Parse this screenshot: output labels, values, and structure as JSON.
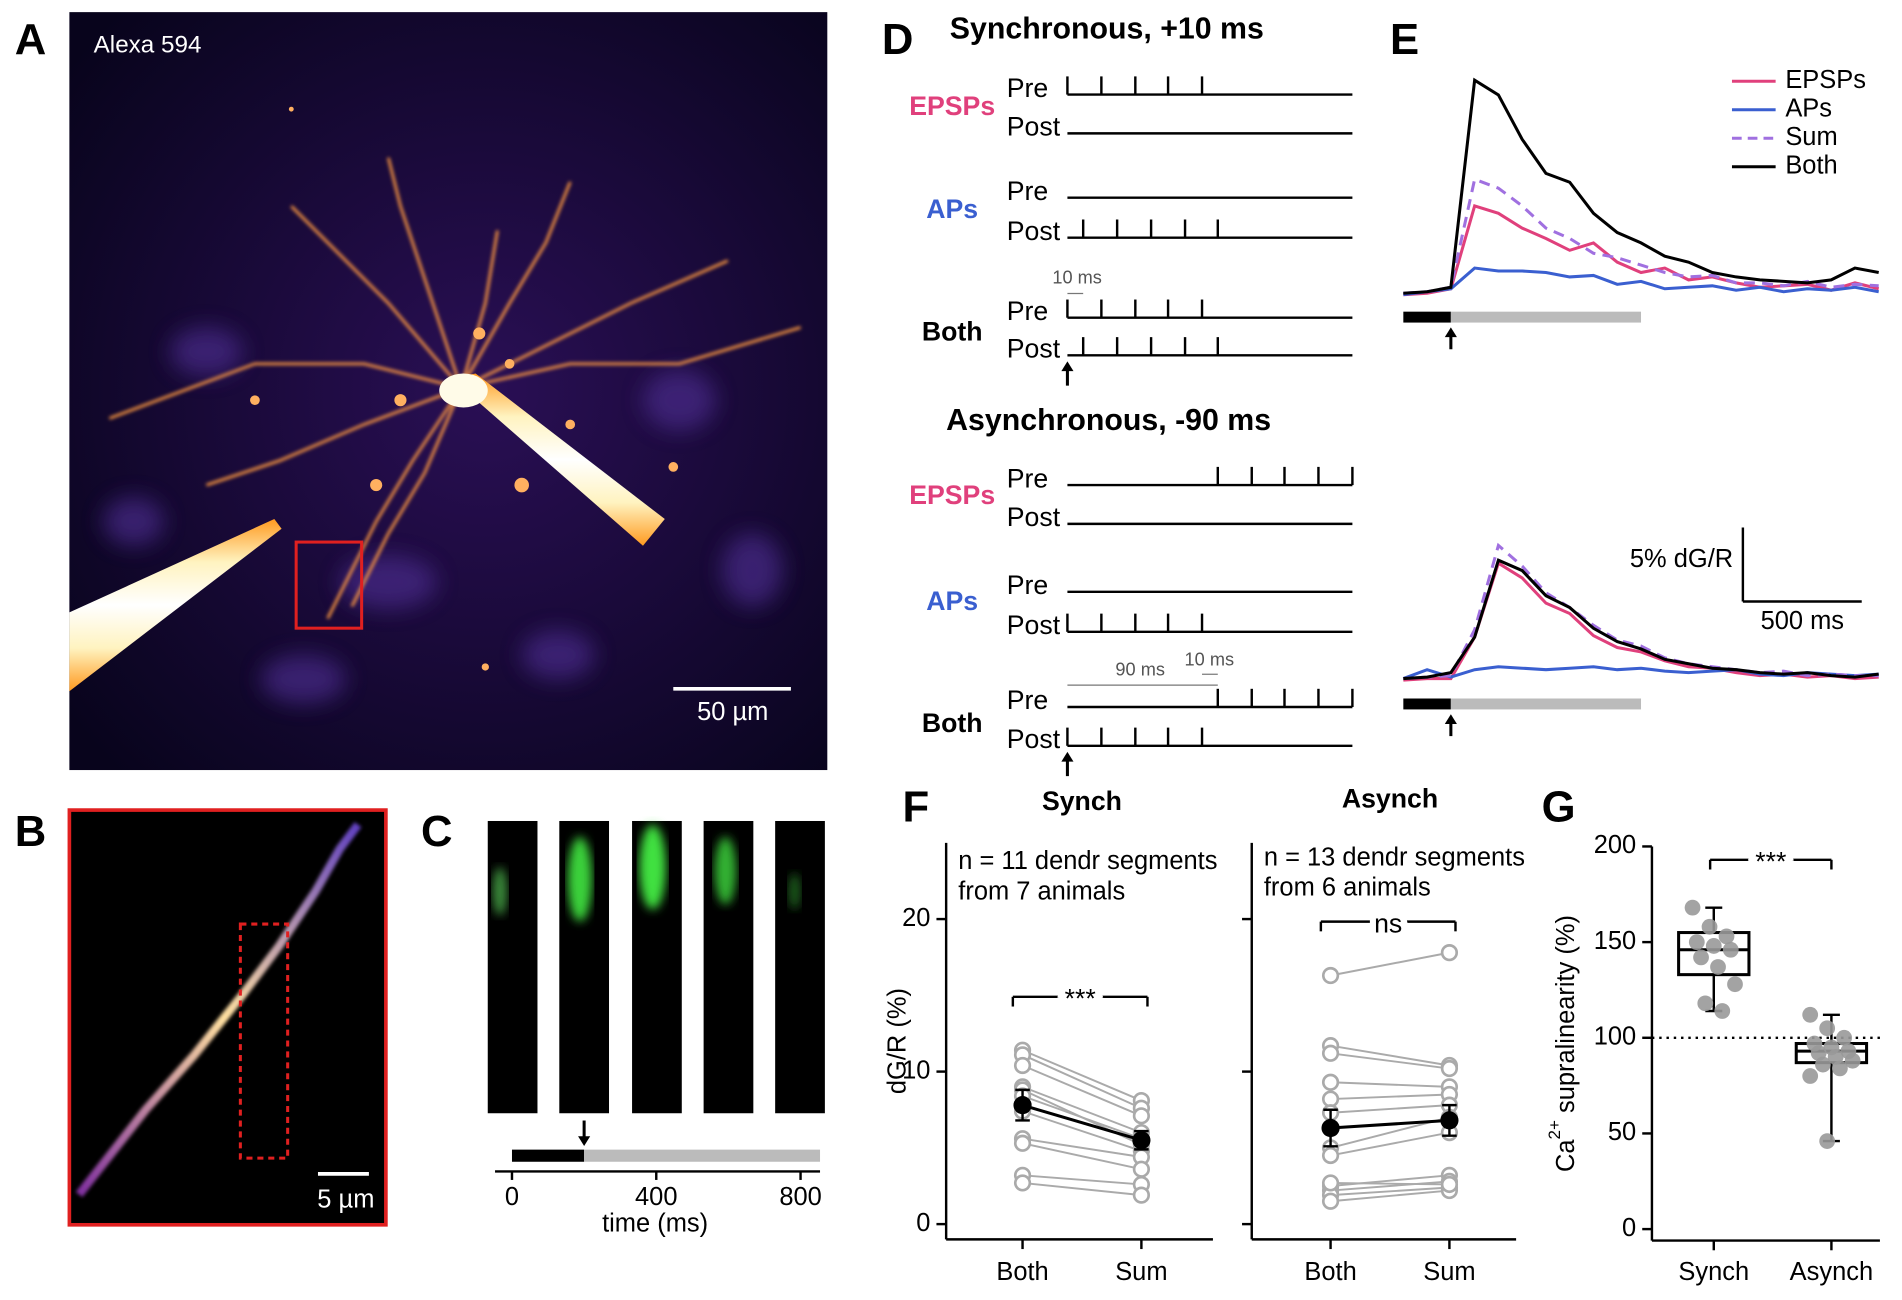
{
  "panels": {
    "letters": [
      "A",
      "B",
      "C",
      "D",
      "E",
      "F",
      "G"
    ]
  },
  "panel_a": {
    "label": "Alexa 594",
    "scale_bar": "50 µm"
  },
  "panel_b": {
    "scale_bar": "5 µm"
  },
  "panel_c": {
    "xlabel": "time (ms)",
    "xlim": [
      -47,
      854
    ],
    "xticks": [
      0,
      400,
      800
    ]
  },
  "panel_d": {
    "titles": [
      "Synchronous, +10 ms",
      "Asynchronous, -90 ms"
    ],
    "groups": [
      "EPSPs",
      "APs",
      "Both"
    ],
    "group_colors": [
      "#e0407c",
      "#3a5fd0",
      "#000000"
    ],
    "pre": "Pre",
    "post": "Post",
    "intervals": [
      "10 ms",
      "90 ms"
    ]
  },
  "chart_data": [
    {
      "type": "line",
      "x": [
        0,
        100,
        200,
        300,
        400,
        500,
        600,
        700,
        800,
        900,
        1000,
        1100,
        1200,
        1300,
        1400,
        1500,
        1600,
        1700,
        1800,
        1900,
        2000
      ],
      "series": [
        {
          "name": "EPSPs",
          "color": "#e0407c",
          "values": [
            0,
            0.1,
            0.4,
            6.0,
            5.5,
            4.5,
            3.8,
            3.0,
            3.5,
            2.2,
            1.5,
            1.8,
            1.0,
            1.2,
            0.8,
            0.5,
            0.6,
            0.7,
            0.3,
            0.8,
            0.4
          ]
        },
        {
          "name": "APs",
          "color": "#3a5fd0",
          "values": [
            0,
            0.2,
            0.4,
            1.8,
            1.6,
            1.6,
            1.5,
            1.2,
            1.3,
            0.7,
            0.9,
            0.4,
            0.5,
            0.6,
            0.3,
            0.5,
            0.2,
            0.4,
            0.3,
            0.5,
            0.2
          ]
        },
        {
          "name": "Sum",
          "color": "#a070e0",
          "dashed": true,
          "values": [
            0.1,
            0.2,
            0.5,
            7.8,
            7.2,
            6.0,
            4.5,
            3.8,
            2.8,
            2.5,
            2.0,
            1.5,
            1.2,
            1.3,
            0.8,
            0.8,
            0.6,
            0.9,
            0.5,
            0.7,
            0.6
          ]
        },
        {
          "name": "Both",
          "color": "#000000",
          "values": [
            0.1,
            0.2,
            0.5,
            14.5,
            13.5,
            10.5,
            8.2,
            7.6,
            5.5,
            4.2,
            3.5,
            2.6,
            2.2,
            1.5,
            1.2,
            1.0,
            0.9,
            0.8,
            1.0,
            1.8,
            1.5
          ]
        }
      ],
      "series_asynchronous": [
        {
          "values": [
            0.1,
            0.2,
            0.2,
            3.0,
            8.0,
            7.0,
            5.3,
            4.6,
            3.1,
            2.3,
            2.0,
            1.4,
            1.0,
            0.9,
            0.6,
            0.4,
            0.5,
            0.3,
            0.4,
            0.2,
            0.3
          ]
        },
        {
          "values": [
            0.2,
            0.8,
            0.3,
            0.8,
            1.0,
            0.9,
            0.8,
            0.9,
            1.0,
            0.8,
            0.9,
            0.7,
            0.6,
            0.7,
            0.8,
            0.5,
            0.4,
            0.6,
            0.5,
            0.4,
            0.5
          ]
        },
        {
          "values": [
            0.2,
            0.3,
            0.4,
            3.5,
            9.2,
            7.8,
            6.0,
            5.0,
            3.8,
            2.8,
            2.4,
            1.6,
            1.2,
            1.0,
            0.8,
            0.6,
            0.7,
            0.4,
            0.5,
            0.4,
            0.4
          ]
        },
        {
          "values": [
            0.2,
            0.3,
            0.6,
            3.0,
            8.2,
            7.5,
            5.8,
            5.0,
            3.6,
            2.7,
            2.2,
            1.5,
            1.2,
            0.9,
            0.8,
            0.6,
            0.5,
            0.6,
            0.4,
            0.3,
            0.5
          ]
        }
      ],
      "scale_bar": {
        "y": 5,
        "y_label": "5% dG/R",
        "x": 500,
        "x_label": "500 ms"
      }
    },
    {
      "type": "paired",
      "title": "Synch",
      "ylabel": "dG/R (%)",
      "categories": [
        "Both",
        "Sum"
      ],
      "ylim": [
        -1,
        25
      ],
      "yticks": [
        0,
        10,
        20
      ],
      "annotation": [
        "n = 11 dendr segments",
        "from 7 animals"
      ],
      "significance": "***",
      "color": "#aaaaaa",
      "series": [
        {
          "values": [
            11.4,
            8.1
          ]
        },
        {
          "values": [
            11.1,
            7.6
          ]
        },
        {
          "values": [
            10.4,
            7.1
          ]
        },
        {
          "values": [
            9.0,
            6.0
          ]
        },
        {
          "values": [
            8.8,
            5.2
          ]
        },
        {
          "values": [
            8.4,
            5.6
          ]
        },
        {
          "values": [
            7.4,
            4.8
          ]
        },
        {
          "values": [
            5.6,
            4.4
          ]
        },
        {
          "values": [
            5.3,
            3.6
          ]
        },
        {
          "values": [
            3.2,
            2.6
          ]
        },
        {
          "values": [
            2.7,
            1.9
          ]
        }
      ],
      "mean": {
        "values": [
          7.8,
          5.5
        ],
        "errors": [
          1.0,
          0.6
        ],
        "color": "#000000"
      }
    },
    {
      "type": "paired",
      "title": "Asynch",
      "categories": [
        "Both",
        "Sum"
      ],
      "ylim": [
        -1,
        25
      ],
      "yticks": [
        0,
        10,
        20
      ],
      "annotation": [
        "n = 13 dendr segments",
        "from 6 animals"
      ],
      "significance": "ns",
      "color": "#aaaaaa",
      "series": [
        {
          "values": [
            16.3,
            17.8
          ]
        },
        {
          "values": [
            11.7,
            10.4
          ]
        },
        {
          "values": [
            11.2,
            10.2
          ]
        },
        {
          "values": [
            9.3,
            9.0
          ]
        },
        {
          "values": [
            8.2,
            8.5
          ]
        },
        {
          "values": [
            7.3,
            7.8
          ]
        },
        {
          "values": [
            5.0,
            7.0
          ]
        },
        {
          "values": [
            4.5,
            6.0
          ]
        },
        {
          "values": [
            2.5,
            3.2
          ]
        },
        {
          "values": [
            2.2,
            2.8
          ]
        },
        {
          "values": [
            1.9,
            2.4
          ]
        },
        {
          "values": [
            1.5,
            2.2
          ]
        },
        {
          "values": [
            2.7,
            2.6
          ]
        }
      ],
      "mean": {
        "values": [
          6.3,
          6.8
        ],
        "errors": [
          1.2,
          1.0
        ],
        "color": "#000000"
      }
    },
    {
      "type": "box",
      "ylabel": [
        "Ca",
        "2+",
        " supralinearity (%)"
      ],
      "categories": [
        "Synch",
        "Asynch"
      ],
      "ylim": [
        -6,
        200
      ],
      "yticks": [
        0,
        50,
        100,
        150,
        200
      ],
      "reference_line": 100,
      "significance": "***",
      "point_color": "#999999",
      "boxes": [
        {
          "low": 114,
          "q1": 133,
          "median": 146,
          "q3": 155,
          "high": 168,
          "points": [
            168,
            158,
            153,
            150,
            148,
            146,
            142,
            137,
            128,
            118,
            114
          ]
        },
        {
          "low": 46,
          "q1": 87,
          "median": 93,
          "q3": 97,
          "high": 112,
          "points": [
            112,
            105,
            100,
            97,
            95,
            93,
            92,
            90,
            88,
            86,
            84,
            80,
            46
          ]
        }
      ]
    }
  ]
}
